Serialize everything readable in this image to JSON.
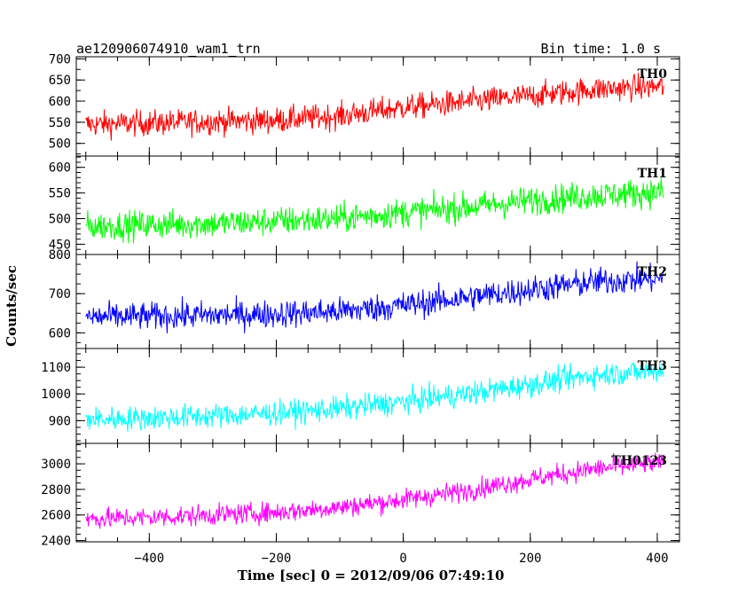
{
  "header": {
    "title": "ae120906074910_wam1_trn",
    "bin_time": "Bin time: 1.0 s"
  },
  "chart_data": {
    "type": "line",
    "xlabel": "Time [sec] 0 = 2012/09/06 07:49:10",
    "ylabel": "Counts/sec",
    "xlim": [
      -515,
      435
    ],
    "x_ticks": [
      -400,
      -200,
      0,
      200,
      400
    ],
    "x_tick_labels": [
      "−400",
      "−200",
      "0",
      "200",
      "400"
    ],
    "panels": [
      {
        "name": "TH0",
        "color": "#ff0000",
        "ylim": [
          470,
          705
        ],
        "y_ticks": [
          500,
          550,
          600,
          650,
          700
        ],
        "y_tick_labels": [
          "500",
          "550",
          "600",
          "650",
          "700"
        ],
        "x": [
          -500,
          -400,
          -300,
          -200,
          -100,
          0,
          100,
          200,
          300,
          410
        ],
        "trend": [
          545,
          548,
          552,
          555,
          565,
          585,
          598,
          612,
          628,
          635
        ],
        "noise_amplitude": 30
      },
      {
        "name": "TH1",
        "color": "#00ff00",
        "ylim": [
          430,
          622
        ],
        "y_ticks": [
          450,
          500,
          550,
          600
        ],
        "y_tick_labels": [
          "450",
          "500",
          "550",
          "600"
        ],
        "x": [
          -500,
          -400,
          -300,
          -200,
          -100,
          0,
          100,
          200,
          300,
          410
        ],
        "trend": [
          485,
          488,
          490,
          495,
          500,
          512,
          522,
          535,
          545,
          552
        ],
        "noise_amplitude": 28
      },
      {
        "name": "TH2",
        "color": "#0000ff",
        "ylim": [
          560,
          800
        ],
        "y_ticks": [
          600,
          700,
          800
        ],
        "y_tick_labels": [
          "600",
          "700",
          "800"
        ],
        "x": [
          -500,
          -400,
          -300,
          -200,
          -100,
          0,
          100,
          200,
          300,
          410
        ],
        "trend": [
          640,
          642,
          645,
          648,
          655,
          670,
          690,
          710,
          730,
          740
        ],
        "noise_amplitude": 35
      },
      {
        "name": "TH3",
        "color": "#00ffff",
        "ylim": [
          815,
          1170
        ],
        "y_ticks": [
          900,
          1000,
          1100
        ],
        "y_tick_labels": [
          "900",
          "1000",
          "1100"
        ],
        "x": [
          -500,
          -400,
          -300,
          -200,
          -100,
          0,
          100,
          200,
          300,
          410
        ],
        "trend": [
          905,
          910,
          918,
          928,
          945,
          970,
          1000,
          1035,
          1070,
          1090
        ],
        "noise_amplitude": 45
      },
      {
        "name": "TH0123",
        "color": "#ff00ff",
        "ylim": [
          2390,
          3160
        ],
        "y_ticks": [
          2400,
          2600,
          2800,
          3000
        ],
        "y_tick_labels": [
          "2400",
          "2600",
          "2800",
          "3000"
        ],
        "x": [
          -500,
          -400,
          -300,
          -200,
          -100,
          0,
          100,
          200,
          300,
          410
        ],
        "trend": [
          2570,
          2580,
          2600,
          2620,
          2660,
          2720,
          2790,
          2880,
          2960,
          3010
        ],
        "noise_amplitude": 80
      }
    ]
  }
}
